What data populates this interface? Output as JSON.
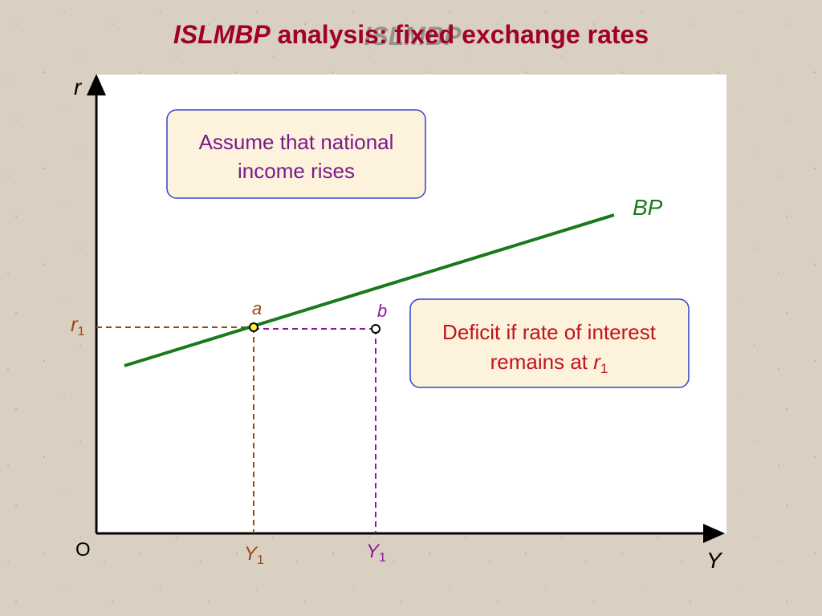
{
  "title": {
    "italic": "ISLMBP",
    "rest": "analysis: fixed exchange rates"
  },
  "axes": {
    "y": "r",
    "x": "Y",
    "origin": "O"
  },
  "r1_label": {
    "main": "r",
    "sub": "1"
  },
  "y1_a_label": {
    "main": "Y",
    "sub": "1"
  },
  "y1_b_label": {
    "main": "Y",
    "sub": "1"
  },
  "points": {
    "a": "a",
    "b": "b"
  },
  "curve": "BP",
  "boxes": [
    {
      "lines": [
        "Assume that national",
        "income rises"
      ]
    },
    {
      "lines": [
        "Deficit if rate of interest",
        "remains at "
      ],
      "var": "r",
      "sub": "1"
    }
  ]
}
